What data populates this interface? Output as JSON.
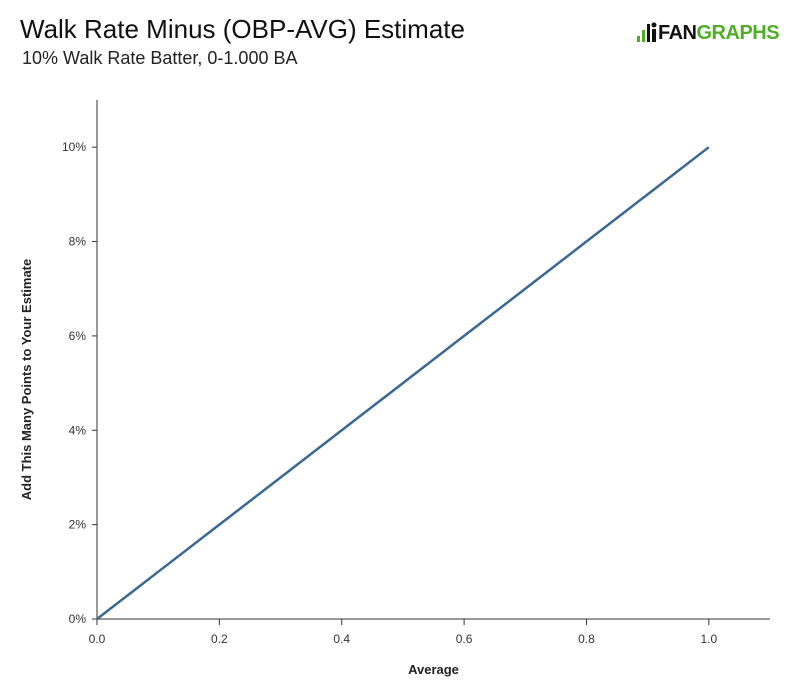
{
  "header": {
    "title": "Walk Rate Minus (OBP-AVG) Estimate",
    "subtitle": "10% Walk Rate Batter, 0-1.000 BA"
  },
  "brand": {
    "name_part1": "FAN",
    "name_part2": "GRAPHS",
    "logo_icon": "fangraphs-logo-icon",
    "color_green": "#50ae26",
    "color_dark": "#111111"
  },
  "chart_data": {
    "type": "line",
    "title": "Walk Rate Minus (OBP-AVG) Estimate",
    "subtitle": "10% Walk Rate Batter, 0-1.000 BA",
    "xlabel": "Average",
    "ylabel": "Add This Many Points to Your Estimate",
    "xlim": [
      0,
      1.1
    ],
    "ylim": [
      0,
      0.11
    ],
    "x_ticks": [
      0,
      0.2,
      0.4,
      0.6,
      0.8,
      1.0
    ],
    "x_tick_labels": [
      "0.0",
      "0.2",
      "0.4",
      "0.6",
      "0.8",
      "1.0"
    ],
    "y_ticks": [
      0,
      0.02,
      0.04,
      0.06,
      0.08,
      0.1
    ],
    "y_tick_labels": [
      "0%",
      "2%",
      "4%",
      "6%",
      "8%",
      "10%"
    ],
    "grid": false,
    "legend": "none",
    "series": [
      {
        "color": "#3a6894",
        "x": [
          0,
          0.1,
          0.2,
          0.3,
          0.4,
          0.5,
          0.6,
          0.7,
          0.8,
          0.9,
          1.0
        ],
        "y": [
          0,
          0.01,
          0.02,
          0.03,
          0.04,
          0.05,
          0.06,
          0.07,
          0.08,
          0.09,
          0.1
        ]
      }
    ]
  }
}
